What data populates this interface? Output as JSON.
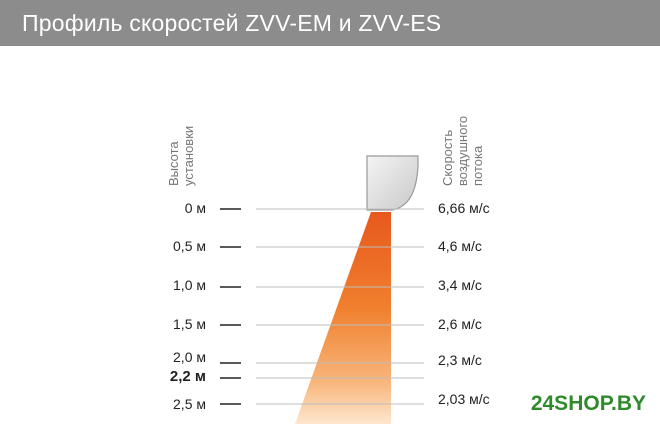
{
  "header": {
    "title": "Профиль скоростей ZVV-EM и ZVV-ES"
  },
  "axis_labels": {
    "height": [
      "Высота",
      "установки"
    ],
    "speed": [
      "Скорость",
      "воздушного",
      "потока"
    ]
  },
  "rows": [
    {
      "height": "0 м",
      "speed": "6,66 м/с",
      "bold": false
    },
    {
      "height": "0,5 м",
      "speed": "4,6 м/с",
      "bold": false
    },
    {
      "height": "1,0 м",
      "speed": "3,4 м/с",
      "bold": false
    },
    {
      "height": "1,5 м",
      "speed": "2,6 м/с",
      "bold": false
    },
    {
      "height": "2,0 м",
      "speed": "2,3 м/с",
      "bold": false
    },
    {
      "height": "2,2 м",
      "speed": "",
      "bold": true
    },
    {
      "height": "2,5 м",
      "speed": "2,03 м/с",
      "bold": false
    }
  ],
  "colors": {
    "header_bg": "#8c8c8c",
    "jet_top": "#e8581c",
    "jet_bottom": "#fde7cf",
    "watermark": "#2f8a2a"
  },
  "watermark": "24SHOP.BY"
}
